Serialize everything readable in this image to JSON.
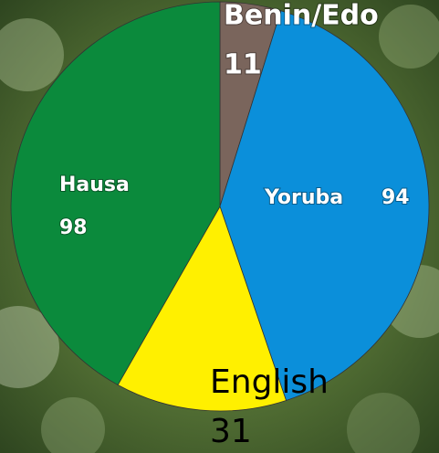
{
  "chart_data": {
    "type": "pie",
    "categories": [
      "Benin/Edo",
      "Yoruba",
      "English",
      "Hausa"
    ],
    "values": [
      11,
      94,
      31,
      98
    ],
    "colors": [
      "#7a655c",
      "#0b8fda",
      "#fff000",
      "#0b8a3c"
    ]
  }
}
